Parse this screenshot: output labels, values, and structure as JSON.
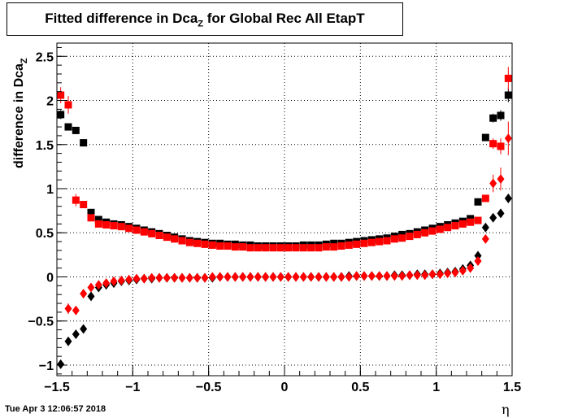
{
  "title": {
    "prefix": "Fitted difference in Dca",
    "subscript": "Z",
    "suffix": " for Global Rec All EtapT"
  },
  "footer": "Tue Apr  3 12:06:57 2018",
  "chart_data": {
    "type": "scatter",
    "title": "Fitted difference in Dca_Z  for Global Rec All EtapT",
    "xlabel": "η",
    "ylabel": "difference in Dca_Z",
    "xlim": [
      -1.5,
      1.5
    ],
    "ylim": [
      -1.12,
      2.65
    ],
    "xticks": [
      -1.5,
      -1,
      -0.5,
      0,
      0.5,
      1,
      1.5
    ],
    "xtick_labels": [
      "−1.5",
      "−1",
      "−0.5",
      "0",
      "0.5",
      "1",
      "1.5"
    ],
    "yticks": [
      -1,
      -0.5,
      0,
      0.5,
      1,
      1.5,
      2,
      2.5
    ],
    "ytick_labels": [
      "−1",
      "−0.5",
      "0",
      "0.5",
      "1",
      "1.5",
      "2",
      "2.5"
    ],
    "grid": true,
    "series": [
      {
        "marker": "square",
        "color": "#000000",
        "x": [
          -1.475,
          -1.425,
          -1.375,
          -1.325,
          -1.275,
          -1.225,
          -1.175,
          -1.125,
          -1.075,
          -1.025,
          -0.975,
          -0.925,
          -0.875,
          -0.825,
          -0.775,
          -0.725,
          -0.675,
          -0.625,
          -0.575,
          -0.525,
          -0.475,
          -0.425,
          -0.375,
          -0.325,
          -0.275,
          -0.225,
          -0.175,
          -0.125,
          -0.075,
          -0.025,
          0.025,
          0.075,
          0.125,
          0.175,
          0.225,
          0.275,
          0.325,
          0.375,
          0.425,
          0.475,
          0.525,
          0.575,
          0.625,
          0.675,
          0.725,
          0.775,
          0.825,
          0.875,
          0.925,
          0.975,
          1.025,
          1.075,
          1.125,
          1.175,
          1.225,
          1.275,
          1.325,
          1.375,
          1.425,
          1.475
        ],
        "y": [
          1.84,
          1.7,
          1.66,
          1.52,
          0.73,
          0.65,
          0.62,
          0.6,
          0.59,
          0.57,
          0.55,
          0.53,
          0.51,
          0.49,
          0.47,
          0.45,
          0.43,
          0.41,
          0.4,
          0.39,
          0.38,
          0.38,
          0.37,
          0.37,
          0.36,
          0.36,
          0.35,
          0.35,
          0.35,
          0.35,
          0.35,
          0.35,
          0.36,
          0.36,
          0.36,
          0.37,
          0.38,
          0.38,
          0.39,
          0.4,
          0.41,
          0.42,
          0.43,
          0.44,
          0.46,
          0.48,
          0.49,
          0.51,
          0.53,
          0.55,
          0.57,
          0.59,
          0.61,
          0.63,
          0.66,
          0.85,
          1.58,
          1.8,
          1.83,
          2.06
        ],
        "err": [
          0.05,
          0.04,
          0.04,
          0.03,
          0.02,
          0.01,
          0.01,
          0.01,
          0.01,
          0.01,
          0.01,
          0.01,
          0.01,
          0.01,
          0.01,
          0.01,
          0.01,
          0.01,
          0.01,
          0.01,
          0.01,
          0.01,
          0.01,
          0.01,
          0.01,
          0.01,
          0.01,
          0.01,
          0.01,
          0.01,
          0.01,
          0.01,
          0.01,
          0.01,
          0.01,
          0.01,
          0.01,
          0.01,
          0.01,
          0.01,
          0.01,
          0.01,
          0.01,
          0.01,
          0.01,
          0.01,
          0.01,
          0.01,
          0.01,
          0.01,
          0.01,
          0.01,
          0.01,
          0.01,
          0.01,
          0.02,
          0.03,
          0.05,
          0.06,
          0.08
        ]
      },
      {
        "marker": "square",
        "color": "#ff0000",
        "x": [
          -1.475,
          -1.425,
          -1.375,
          -1.325,
          -1.275,
          -1.225,
          -1.175,
          -1.125,
          -1.075,
          -1.025,
          -0.975,
          -0.925,
          -0.875,
          -0.825,
          -0.775,
          -0.725,
          -0.675,
          -0.625,
          -0.575,
          -0.525,
          -0.475,
          -0.425,
          -0.375,
          -0.325,
          -0.275,
          -0.225,
          -0.175,
          -0.125,
          -0.075,
          -0.025,
          0.025,
          0.075,
          0.125,
          0.175,
          0.225,
          0.275,
          0.325,
          0.375,
          0.425,
          0.475,
          0.525,
          0.575,
          0.625,
          0.675,
          0.725,
          0.775,
          0.825,
          0.875,
          0.925,
          0.975,
          1.025,
          1.075,
          1.125,
          1.175,
          1.225,
          1.275,
          1.325,
          1.375,
          1.425,
          1.475
        ],
        "y": [
          2.06,
          1.95,
          0.87,
          0.82,
          0.67,
          0.6,
          0.59,
          0.58,
          0.57,
          0.55,
          0.53,
          0.51,
          0.49,
          0.47,
          0.45,
          0.43,
          0.41,
          0.39,
          0.38,
          0.37,
          0.36,
          0.35,
          0.35,
          0.34,
          0.34,
          0.33,
          0.33,
          0.33,
          0.33,
          0.33,
          0.33,
          0.33,
          0.33,
          0.33,
          0.33,
          0.34,
          0.34,
          0.35,
          0.36,
          0.37,
          0.38,
          0.39,
          0.4,
          0.41,
          0.43,
          0.44,
          0.46,
          0.48,
          0.5,
          0.52,
          0.54,
          0.56,
          0.58,
          0.6,
          0.62,
          0.64,
          0.89,
          1.51,
          1.48,
          2.25
        ],
        "err": [
          0.09,
          0.1,
          0.07,
          0.04,
          0.02,
          0.02,
          0.01,
          0.01,
          0.01,
          0.01,
          0.01,
          0.01,
          0.01,
          0.01,
          0.01,
          0.01,
          0.01,
          0.01,
          0.01,
          0.01,
          0.01,
          0.01,
          0.01,
          0.01,
          0.01,
          0.01,
          0.01,
          0.01,
          0.01,
          0.01,
          0.01,
          0.01,
          0.01,
          0.01,
          0.01,
          0.01,
          0.01,
          0.01,
          0.01,
          0.01,
          0.01,
          0.01,
          0.01,
          0.01,
          0.01,
          0.01,
          0.01,
          0.01,
          0.01,
          0.01,
          0.01,
          0.01,
          0.01,
          0.01,
          0.01,
          0.02,
          0.04,
          0.06,
          0.09,
          0.13
        ]
      },
      {
        "marker": "diamond",
        "color": "#000000",
        "x": [
          -1.475,
          -1.425,
          -1.375,
          -1.325,
          -1.275,
          -1.225,
          -1.175,
          -1.125,
          -1.075,
          -1.025,
          -0.975,
          -0.925,
          -0.875,
          -0.825,
          -0.775,
          -0.725,
          -0.675,
          -0.625,
          -0.575,
          -0.525,
          -0.475,
          -0.425,
          -0.375,
          -0.325,
          -0.275,
          -0.225,
          -0.175,
          -0.125,
          -0.075,
          -0.025,
          0.025,
          0.075,
          0.125,
          0.175,
          0.225,
          0.275,
          0.325,
          0.375,
          0.425,
          0.475,
          0.525,
          0.575,
          0.625,
          0.675,
          0.725,
          0.775,
          0.825,
          0.875,
          0.925,
          0.975,
          1.025,
          1.075,
          1.125,
          1.175,
          1.225,
          1.275,
          1.325,
          1.375,
          1.425,
          1.475
        ],
        "y": [
          -0.99,
          -0.73,
          -0.65,
          -0.59,
          -0.22,
          -0.12,
          -0.09,
          -0.07,
          -0.05,
          -0.04,
          -0.03,
          -0.02,
          -0.02,
          -0.01,
          -0.01,
          -0.01,
          -0.01,
          -0.01,
          -0.01,
          -0.01,
          -0.01,
          0.0,
          0.0,
          0.0,
          0.0,
          0.0,
          0.0,
          0.0,
          0.0,
          0.0,
          0.0,
          0.0,
          0.0,
          0.0,
          0.0,
          0.0,
          0.0,
          0.0,
          0.01,
          0.01,
          0.01,
          0.01,
          0.01,
          0.01,
          0.02,
          0.02,
          0.02,
          0.03,
          0.03,
          0.03,
          0.04,
          0.05,
          0.06,
          0.09,
          0.13,
          0.24,
          0.56,
          0.67,
          0.72,
          0.89
        ],
        "err": [
          0.04,
          0.03,
          0.03,
          0.02,
          0.02,
          0.01,
          0.01,
          0.01,
          0.01,
          0.01,
          0.01,
          0.01,
          0.01,
          0.01,
          0.01,
          0.01,
          0.01,
          0.01,
          0.01,
          0.01,
          0.01,
          0.01,
          0.01,
          0.01,
          0.01,
          0.01,
          0.01,
          0.01,
          0.01,
          0.01,
          0.01,
          0.01,
          0.01,
          0.01,
          0.01,
          0.01,
          0.01,
          0.01,
          0.01,
          0.01,
          0.01,
          0.01,
          0.01,
          0.01,
          0.01,
          0.01,
          0.01,
          0.01,
          0.01,
          0.01,
          0.01,
          0.01,
          0.01,
          0.01,
          0.01,
          0.02,
          0.02,
          0.03,
          0.04,
          0.05
        ]
      },
      {
        "marker": "diamond",
        "color": "#ff0000",
        "x": [
          -1.425,
          -1.375,
          -1.325,
          -1.275,
          -1.225,
          -1.175,
          -1.125,
          -1.075,
          -1.025,
          -0.975,
          -0.925,
          -0.875,
          -0.825,
          -0.775,
          -0.725,
          -0.675,
          -0.625,
          -0.575,
          -0.525,
          -0.475,
          -0.425,
          -0.375,
          -0.325,
          -0.275,
          -0.225,
          -0.175,
          -0.125,
          -0.075,
          -0.025,
          0.025,
          0.075,
          0.125,
          0.175,
          0.225,
          0.275,
          0.325,
          0.375,
          0.425,
          0.475,
          0.525,
          0.575,
          0.625,
          0.675,
          0.725,
          0.775,
          0.825,
          0.875,
          0.925,
          0.975,
          1.025,
          1.075,
          1.125,
          1.175,
          1.225,
          1.275,
          1.325,
          1.375,
          1.425,
          1.475
        ],
        "y": [
          -0.36,
          -0.38,
          -0.19,
          -0.12,
          -0.09,
          -0.07,
          -0.05,
          -0.04,
          -0.03,
          -0.02,
          -0.02,
          -0.01,
          -0.01,
          -0.01,
          -0.01,
          -0.01,
          -0.01,
          -0.01,
          -0.01,
          0.0,
          0.0,
          0.0,
          0.0,
          0.0,
          0.0,
          0.0,
          0.0,
          0.0,
          0.0,
          0.0,
          0.0,
          0.0,
          0.0,
          0.0,
          0.0,
          0.0,
          0.0,
          0.0,
          0.01,
          0.01,
          0.01,
          0.01,
          0.01,
          0.01,
          0.01,
          0.02,
          0.02,
          0.02,
          0.03,
          0.03,
          0.04,
          0.05,
          0.07,
          0.1,
          0.18,
          0.43,
          1.06,
          1.11,
          1.57
        ],
        "err": [
          0.06,
          0.03,
          0.02,
          0.02,
          0.01,
          0.01,
          0.01,
          0.01,
          0.01,
          0.01,
          0.01,
          0.01,
          0.01,
          0.01,
          0.01,
          0.01,
          0.01,
          0.01,
          0.01,
          0.01,
          0.01,
          0.01,
          0.01,
          0.01,
          0.01,
          0.01,
          0.01,
          0.01,
          0.01,
          0.01,
          0.01,
          0.01,
          0.01,
          0.01,
          0.01,
          0.01,
          0.01,
          0.01,
          0.01,
          0.01,
          0.01,
          0.01,
          0.01,
          0.01,
          0.01,
          0.01,
          0.01,
          0.01,
          0.01,
          0.01,
          0.01,
          0.01,
          0.01,
          0.01,
          0.02,
          0.03,
          0.1,
          0.13,
          0.19
        ]
      }
    ]
  }
}
